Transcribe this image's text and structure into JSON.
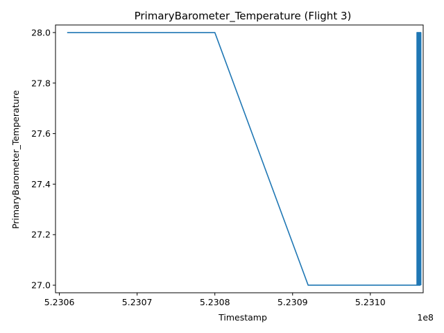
{
  "chart_data": {
    "type": "line",
    "title": "PrimaryBarometer_Temperature (Flight 3)",
    "xlabel": "Timestamp",
    "ylabel": "PrimaryBarometer_Temperature",
    "x_offset_label": "1e8",
    "x_scale": 100000000,
    "xlim": [
      523059.5,
      523106.8
    ],
    "ylim": [
      26.97,
      28.03
    ],
    "x_ticks": [
      523060,
      523070,
      523080,
      523090,
      523100
    ],
    "x_tick_labels": [
      "5.2306",
      "5.2307",
      "5.2308",
      "5.2309",
      "5.2310"
    ],
    "y_ticks": [
      27.0,
      27.2,
      27.4,
      27.6,
      27.8,
      28.0
    ],
    "y_tick_labels": [
      "27.0",
      "27.2",
      "27.4",
      "27.6",
      "27.8",
      "28.0"
    ],
    "grid": false,
    "series": [
      {
        "color": "#1f77b4",
        "x": [
          523061,
          523080,
          523092,
          523106,
          523106,
          523106.1,
          523106.1,
          523106.2,
          523106.2,
          523106.3,
          523106.3,
          523106.4,
          523106.4,
          523106.5,
          523106.5
        ],
        "y": [
          28.0,
          28.0,
          27.0,
          27.0,
          28.0,
          28.0,
          27.0,
          27.0,
          28.0,
          28.0,
          27.0,
          27.0,
          28.0,
          28.0,
          27.0
        ]
      }
    ]
  }
}
